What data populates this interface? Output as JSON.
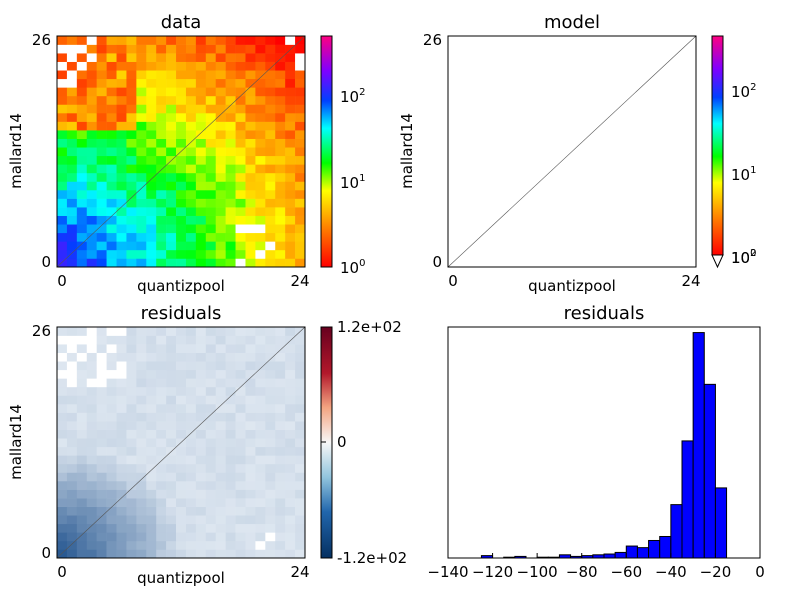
{
  "chart_data": [
    {
      "type": "heatmap",
      "title": "data",
      "xlabel": "quantizpool",
      "ylabel": "mallard14",
      "x_ticks": [
        "0",
        "24"
      ],
      "y_ticks": [
        "0",
        "26"
      ],
      "xlim": [
        0,
        24
      ],
      "ylim": [
        0,
        26
      ],
      "color_scale": "log",
      "colorbar": {
        "range": [
          1,
          400
        ],
        "ticks": [
          "10^0",
          "10^1",
          "10^2"
        ],
        "colormap": "gist_rainbow"
      },
      "diagonal_line": true,
      "grid_size": [
        25,
        27
      ],
      "values_note": "color intensity per cell read from image; white cells are empty"
    },
    {
      "type": "heatmap",
      "title": "model",
      "xlabel": "quantizpool",
      "ylabel": "mallard14",
      "x_ticks": [
        "0",
        "24"
      ],
      "y_ticks": [
        "0",
        "26"
      ],
      "xlim": [
        0,
        24
      ],
      "ylim": [
        0,
        26
      ],
      "color_scale": "log",
      "colorbar": {
        "ticks": [
          "10^0",
          "10^1",
          "10^2"
        ],
        "bottom_labels": [
          "10^0",
          "10^2"
        ],
        "extend": "min"
      },
      "diagonal_line": true
    },
    {
      "type": "heatmap",
      "title": "residuals",
      "xlabel": "quantizpool",
      "ylabel": "mallard14",
      "x_ticks": [
        "0",
        "24"
      ],
      "y_ticks": [
        "0",
        "26"
      ],
      "xlim": [
        0,
        24
      ],
      "ylim": [
        0,
        26
      ],
      "colorbar": {
        "range": [
          -120,
          120
        ],
        "ticks": [
          "1.2e+02",
          "0",
          "-1.2e+02"
        ],
        "colormap": "RdBu_r"
      },
      "diagonal_line": true
    },
    {
      "type": "bar",
      "title": "residuals",
      "xlim": [
        -140,
        0
      ],
      "x_ticks": [
        "−140",
        "−120",
        "−100",
        "−80",
        "−60",
        "−40",
        "−20",
        "0"
      ],
      "bin_width": 5,
      "bins": [
        {
          "left": -125,
          "count": 3
        },
        {
          "left": -120,
          "count": 0
        },
        {
          "left": -115,
          "count": 1
        },
        {
          "left": -110,
          "count": 2
        },
        {
          "left": -105,
          "count": 0
        },
        {
          "left": -100,
          "count": 1
        },
        {
          "left": -95,
          "count": 1
        },
        {
          "left": -90,
          "count": 4
        },
        {
          "left": -85,
          "count": 2
        },
        {
          "left": -80,
          "count": 3
        },
        {
          "left": -75,
          "count": 4
        },
        {
          "left": -70,
          "count": 5
        },
        {
          "left": -65,
          "count": 7
        },
        {
          "left": -60,
          "count": 15
        },
        {
          "left": -55,
          "count": 13
        },
        {
          "left": -50,
          "count": 22
        },
        {
          "left": -45,
          "count": 27
        },
        {
          "left": -40,
          "count": 67
        },
        {
          "left": -35,
          "count": 147
        },
        {
          "left": -30,
          "count": 283
        },
        {
          "left": -25,
          "count": 218
        },
        {
          "left": -20,
          "count": 88
        }
      ],
      "ymax": 290,
      "bar_color": "#0000ff"
    }
  ]
}
